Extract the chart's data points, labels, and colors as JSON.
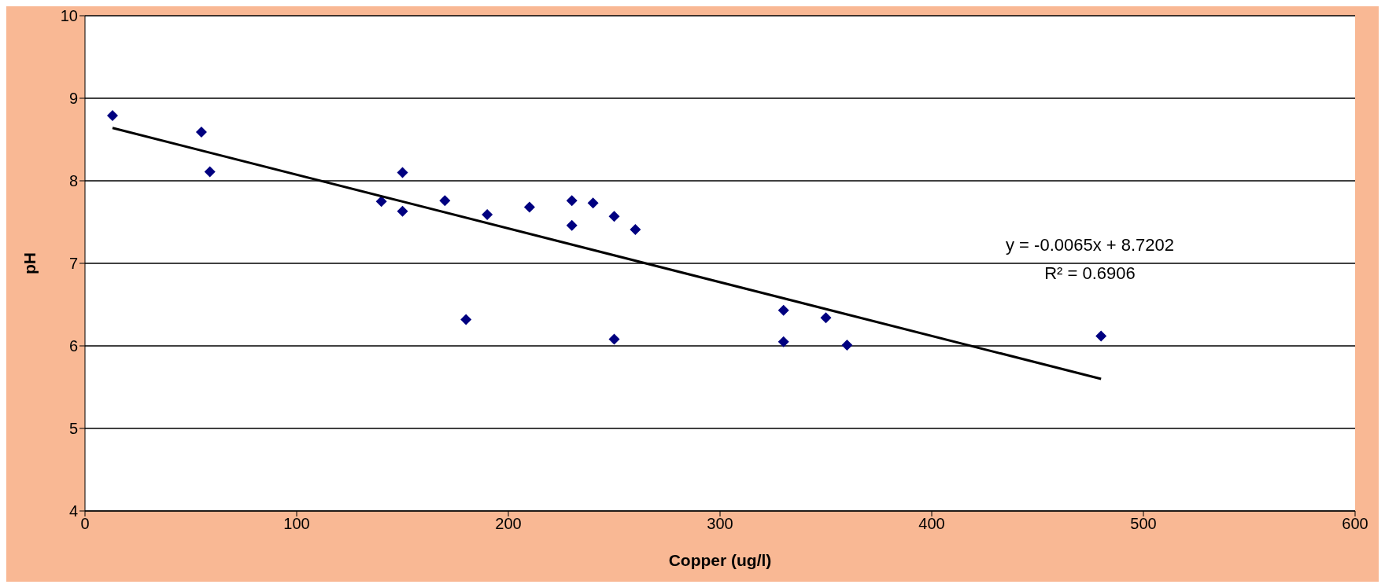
{
  "chart_data": {
    "type": "scatter",
    "xlabel": "Copper (ug/l)",
    "ylabel": "pH",
    "xlim": [
      0,
      600
    ],
    "xticks": [
      0,
      100,
      200,
      300,
      400,
      500,
      600
    ],
    "ylim": [
      4,
      10
    ],
    "yticks": [
      4,
      5,
      6,
      7,
      8,
      9,
      10
    ],
    "grid": "y",
    "annotations": [
      "y = -0.0065x + 8.7202",
      "R² = 0.6906"
    ],
    "series": [
      {
        "color": "#000080",
        "marker": "diamond",
        "x": [
          13,
          55,
          59,
          140,
          150,
          150,
          170,
          180,
          190,
          210,
          230,
          230,
          240,
          250,
          250,
          260,
          330,
          330,
          350,
          360,
          480
        ],
        "values": [
          8.79,
          8.59,
          8.11,
          7.75,
          8.1,
          7.63,
          7.76,
          6.32,
          7.59,
          7.68,
          7.76,
          7.46,
          7.73,
          7.57,
          6.08,
          7.41,
          6.43,
          6.05,
          6.34,
          6.01,
          6.12
        ]
      },
      {
        "type": "line",
        "color": "#000000",
        "line_style": "solid",
        "x": [
          13,
          480
        ],
        "values": [
          8.64,
          5.6
        ]
      }
    ]
  }
}
